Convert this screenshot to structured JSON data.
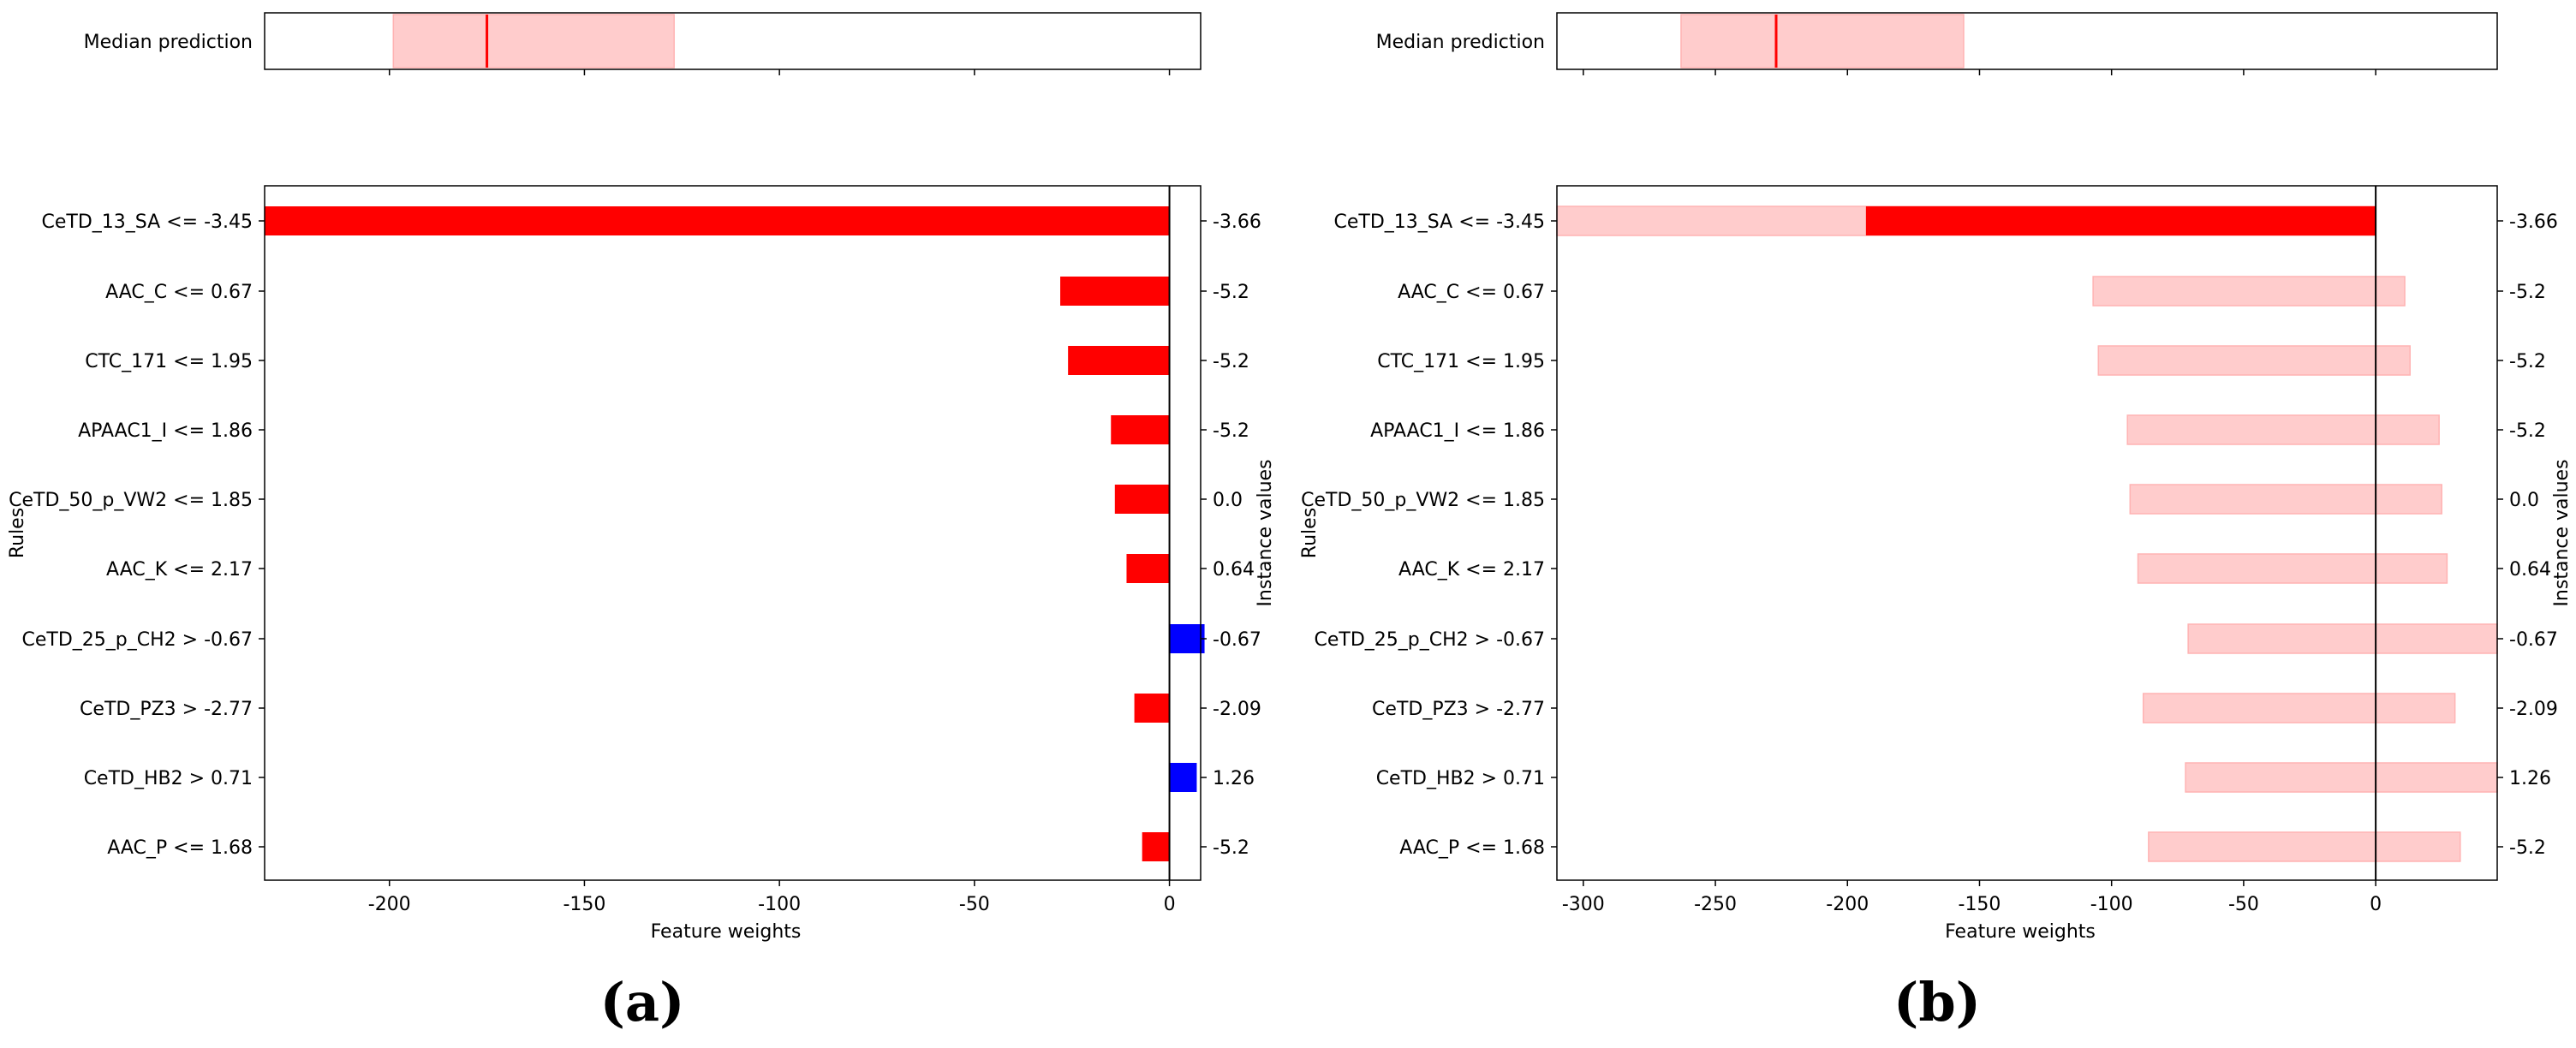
{
  "figure": {
    "panel_labels": [
      "(a)",
      "(b)"
    ]
  },
  "chart_data": [
    {
      "type": "bar",
      "panel": "(a)",
      "orientation": "horizontal",
      "median": {
        "label": "Median prediction",
        "value": -175,
        "interval": [
          -199,
          -127
        ],
        "xlim": [
          -232,
          8
        ]
      },
      "rules": [
        "CeTD_13_SA <= -3.45",
        "AAC_C <= 0.67",
        "CTC_171 <= 1.95",
        "APAAC1_I <= 1.86",
        "CeTD_50_p_VW2 <= 1.85",
        "AAC_K <= 2.17",
        "CeTD_25_p_CH2 > -0.67",
        "CeTD_PZ3 > -2.77",
        "CeTD_HB2 > 0.71",
        "AAC_P <= 1.68"
      ],
      "instance_values": [
        "-3.66",
        "-5.2",
        "-5.2",
        "-5.2",
        "0.0",
        "0.64",
        "-0.67",
        "-2.09",
        "1.26",
        "-5.2"
      ],
      "weights": [
        -232,
        -28,
        -26,
        -15,
        -14,
        -11,
        9,
        -9,
        7,
        -7
      ],
      "intervals": null,
      "xlim": [
        -232,
        8
      ],
      "xticks": [
        -200,
        -150,
        -100,
        -50,
        0
      ],
      "xlabel": "Feature weights",
      "ylabel": "Rules",
      "y2label": "Instance values",
      "colors": {
        "negative": "#ff0000",
        "positive": "#0000ff",
        "median_fill": "#ffcccc",
        "median_line": "#ff0000"
      }
    },
    {
      "type": "bar",
      "panel": "(b)",
      "orientation": "horizontal",
      "median": {
        "label": "Median prediction",
        "value": -227,
        "interval": [
          -263,
          -156
        ],
        "xlim": [
          -310,
          46
        ]
      },
      "rules": [
        "CeTD_13_SA <= -3.45",
        "AAC_C <= 0.67",
        "CTC_171 <= 1.95",
        "APAAC1_I <= 1.86",
        "CeTD_50_p_VW2 <= 1.85",
        "AAC_K <= 2.17",
        "CeTD_25_p_CH2 > -0.67",
        "CeTD_PZ3 > -2.77",
        "CeTD_HB2 > 0.71",
        "AAC_P <= 1.68"
      ],
      "instance_values": [
        "-3.66",
        "-5.2",
        "-5.2",
        "-5.2",
        "0.0",
        "0.64",
        "-0.67",
        "-2.09",
        "1.26",
        "-5.2"
      ],
      "weights": [
        -193,
        0,
        0,
        0,
        0,
        0,
        0,
        0,
        0,
        0
      ],
      "intervals": [
        [
          -310,
          0
        ],
        [
          -107,
          11
        ],
        [
          -105,
          13
        ],
        [
          -94,
          24
        ],
        [
          -93,
          25
        ],
        [
          -90,
          27
        ],
        [
          -71,
          46
        ],
        [
          -88,
          30
        ],
        [
          -72,
          46
        ],
        [
          -86,
          32
        ]
      ],
      "xlim": [
        -310,
        46
      ],
      "xticks": [
        -300,
        -250,
        -200,
        -150,
        -100,
        -50,
        0
      ],
      "xlabel": "Feature weights",
      "ylabel": "Rules",
      "y2label": "Instance values",
      "colors": {
        "negative": "#ff0000",
        "positive": "#0000ff",
        "neg_interval": "#ffcccc",
        "pos_interval": "#ccccff",
        "median_fill": "#ffcccc",
        "median_line": "#ff0000"
      }
    }
  ]
}
